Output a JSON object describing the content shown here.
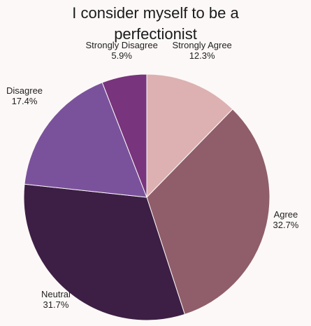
{
  "chart_data": {
    "type": "pie",
    "title": "I consider myself to be a perfectionist",
    "title_lines": [
      "I consider myself to be a",
      "perfectionist"
    ],
    "slices": [
      {
        "label": "Strongly Agree",
        "value": 12.3,
        "percent_label": "12.3%",
        "color": "#ddb1b1"
      },
      {
        "label": "Agree",
        "value": 32.7,
        "percent_label": "32.7%",
        "color": "#8f5e6a"
      },
      {
        "label": "Neutral",
        "value": 31.7,
        "percent_label": "31.7%",
        "color": "#3d1f45"
      },
      {
        "label": "Disagree",
        "value": 17.4,
        "percent_label": "17.4%",
        "color": "#7a529c"
      },
      {
        "label": "Strongly Disagree",
        "value": 5.9,
        "percent_label": "5.9%",
        "color": "#78347c"
      }
    ],
    "start_angle": "12 o'clock",
    "direction": "clockwise",
    "legend": "none",
    "labels": "outside"
  }
}
